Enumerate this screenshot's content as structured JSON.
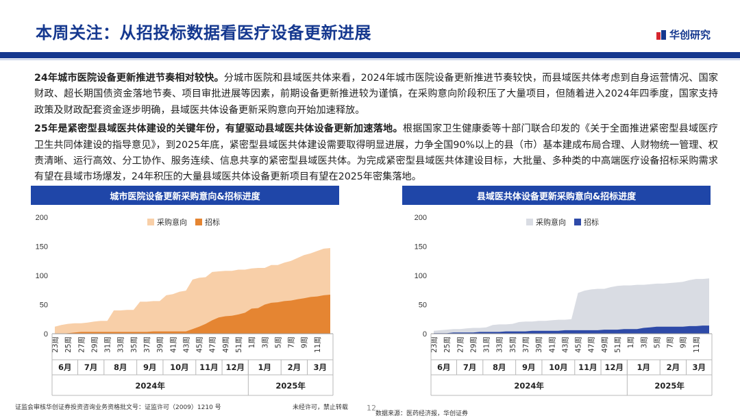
{
  "header": {
    "title": "本周关注：从招投标数据看医疗设备更新进展",
    "logo_text": "华创研究"
  },
  "paragraphs": [
    {
      "lead": "24年城市医院设备更新推进节奏相对较快。",
      "text": "分城市医院和县域医共体来看，2024年城市医院设备更新推进节奏较快，而县域医共体考虑到自身运营情况、国家财政、超长期国债资金落地节奏、项目审批进展等因素，前期设备更新推进较为谨慎，在采购意向阶段积压了大量项目，但随着进入2024年四季度，国家支持政策及财政配套资金逐步明确，县域医共体设备更新采购意向开始加速释放。"
    },
    {
      "lead": "25年是紧密型县域医共体建设的关键年份，有望驱动县域医共体设备更新加速落地。",
      "text": "根据国家卫生健康委等十部门联合印发的《关于全面推进紧密型县域医疗卫生共同体建设的指导意见》，到2025年底，紧密型县域医共体建设需要取得明显进展，力争全国90%以上的县（市）基本建成布局合理、人财物统一管理、权责清晰、运行高效、分工协作、服务连续、信息共享的紧密型县域医共体。为完成紧密型县域医共体建设目标，大批量、多种类的中高端医疗设备招标采购需求有望在县域市场爆发，24年积压的大量县域医共体设备更新项目有望在2025年密集落地。"
    }
  ],
  "chart_data": [
    {
      "type": "area",
      "title": "城市医院设备更新采购意向&招标进度",
      "ylim": [
        0,
        200
      ],
      "yticks": [
        0,
        50,
        100,
        150,
        200
      ],
      "x": [
        "23周",
        "24周",
        "25周",
        "26周",
        "27周",
        "28周",
        "29周",
        "30周",
        "31周",
        "32周",
        "33周",
        "34周",
        "35周",
        "36周",
        "37周",
        "38周",
        "39周",
        "40周",
        "41周",
        "42周",
        "43周",
        "44周",
        "45周",
        "46周",
        "47周",
        "48周",
        "49周",
        "50周",
        "51周",
        "52周",
        "1周",
        "2周",
        "3周",
        "4周",
        "5周",
        "6周",
        "7周",
        "8周",
        "9周",
        "10周",
        "11周",
        "12周",
        "13周"
      ],
      "xtick_labels": [
        "23周",
        "25周",
        "27周",
        "29周",
        "31周",
        "33周",
        "35周",
        "37周",
        "39周",
        "41周",
        "43周",
        "45周",
        "47周",
        "49周",
        "51周",
        "1周",
        "3周",
        "5周",
        "7周",
        "9周",
        "11周"
      ],
      "months": [
        "6月",
        "7月",
        "8月",
        "9月",
        "10月",
        "11月",
        "12月",
        "1月",
        "2月",
        "3月"
      ],
      "years": [
        "2024年",
        "2025年"
      ],
      "colors": {
        "intent": "#f8cfa8",
        "tender": "#e58532"
      },
      "series": [
        {
          "name": "采购意向",
          "values": [
            12,
            15,
            17,
            18,
            18,
            19,
            21,
            22,
            22,
            40,
            40,
            41,
            41,
            55,
            55,
            56,
            56,
            66,
            68,
            72,
            74,
            93,
            96,
            97,
            106,
            107,
            108,
            108,
            110,
            110,
            112,
            113,
            113,
            118,
            118,
            122,
            125,
            130,
            135,
            138,
            142,
            146,
            147
          ]
        },
        {
          "name": "招标",
          "values": [
            0,
            0,
            1,
            2,
            3,
            3,
            3,
            3,
            3,
            3,
            3,
            3,
            3,
            3,
            3,
            4,
            4,
            4,
            4,
            4,
            4,
            8,
            12,
            17,
            23,
            28,
            30,
            31,
            33,
            36,
            43,
            44,
            50,
            53,
            54,
            56,
            57,
            59,
            61,
            63,
            64,
            66,
            67
          ]
        }
      ]
    },
    {
      "type": "area",
      "title": "县域医共体设备更新采购意向&招标进度",
      "ylim": [
        0,
        200
      ],
      "yticks": [
        0,
        50,
        100,
        150,
        200
      ],
      "x": [
        "23周",
        "24周",
        "25周",
        "26周",
        "27周",
        "28周",
        "29周",
        "30周",
        "31周",
        "32周",
        "33周",
        "34周",
        "35周",
        "36周",
        "37周",
        "38周",
        "39周",
        "40周",
        "41周",
        "42周",
        "43周",
        "44周",
        "45周",
        "46周",
        "47周",
        "48周",
        "49周",
        "50周",
        "51周",
        "52周",
        "1周",
        "2周",
        "3周",
        "4周",
        "5周",
        "6周",
        "7周",
        "8周",
        "9周",
        "10周",
        "11周",
        "12周",
        "13周"
      ],
      "xtick_labels": [
        "23周",
        "25周",
        "27周",
        "29周",
        "31周",
        "33周",
        "35周",
        "37周",
        "39周",
        "41周",
        "43周",
        "45周",
        "47周",
        "49周",
        "51周",
        "1周",
        "3周",
        "5周",
        "7周",
        "9周",
        "11周"
      ],
      "months": [
        "6月",
        "7月",
        "8月",
        "9月",
        "10月",
        "11月",
        "12月",
        "1月",
        "2月",
        "3月"
      ],
      "years": [
        "2024年",
        "2025年"
      ],
      "colors": {
        "intent": "#d9dce3",
        "tender": "#2e4aa8"
      },
      "series": [
        {
          "name": "采购意向",
          "values": [
            5,
            6,
            7,
            8,
            8,
            9,
            10,
            10,
            11,
            15,
            16,
            16,
            17,
            20,
            21,
            21,
            22,
            22,
            23,
            24,
            24,
            25,
            70,
            74,
            76,
            77,
            77,
            80,
            82,
            83,
            83,
            84,
            84,
            85,
            86,
            86,
            87,
            88,
            89,
            92,
            94,
            94,
            95
          ]
        },
        {
          "name": "招标",
          "values": [
            1,
            1,
            1,
            2,
            2,
            2,
            2,
            3,
            3,
            3,
            3,
            4,
            4,
            4,
            4,
            5,
            5,
            5,
            5,
            5,
            6,
            6,
            6,
            6,
            6,
            6,
            7,
            7,
            7,
            8,
            8,
            8,
            10,
            11,
            12,
            12,
            12,
            12,
            12,
            13,
            13,
            14,
            14
          ]
        }
      ]
    }
  ],
  "footer": {
    "license": "证监会审核华创证券投资咨询业务资格批文号：证监许可（2009）1210 号",
    "notice": "未经许可，禁止转载",
    "page": "12",
    "source": "数据来源：医药经济报，华创证券"
  }
}
